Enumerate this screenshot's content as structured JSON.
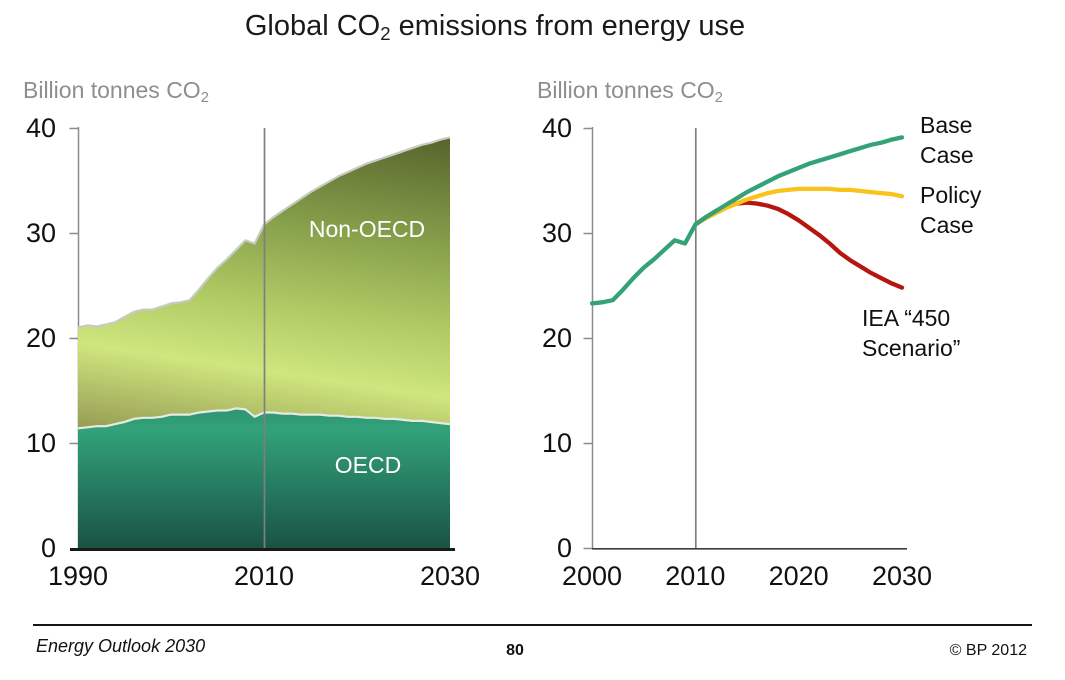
{
  "title": {
    "prefix": "Global CO",
    "sub": "2",
    "suffix": " emissions from energy use"
  },
  "left_chart_unit": {
    "prefix": "Billion tonnes CO",
    "sub": "2"
  },
  "right_chart_unit": {
    "prefix": "Billion tonnes CO",
    "sub": "2"
  },
  "chart_data": [
    {
      "type": "area",
      "stacked": true,
      "ylabel": "Billion tonnes CO2",
      "xlabel": "",
      "ylim": [
        0,
        40
      ],
      "grid": false,
      "x_start_year": 1990,
      "x_end_year": 2030,
      "x_step": 1,
      "y_ticks": [
        40,
        30,
        20,
        10,
        0
      ],
      "x_ticks": [
        1990,
        2010,
        2030
      ],
      "divider_year": 2010,
      "series": [
        {
          "name": "OECD",
          "values": [
            11.4,
            11.5,
            11.6,
            11.6,
            11.8,
            12.0,
            12.3,
            12.4,
            12.4,
            12.5,
            12.7,
            12.7,
            12.7,
            12.9,
            13.0,
            13.1,
            13.1,
            13.3,
            13.2,
            12.5,
            12.9,
            12.9,
            12.8,
            12.8,
            12.7,
            12.7,
            12.7,
            12.6,
            12.6,
            12.5,
            12.5,
            12.4,
            12.4,
            12.3,
            12.3,
            12.2,
            12.1,
            12.1,
            12.0,
            11.9,
            11.8
          ]
        },
        {
          "name": "Non-OECD",
          "values": [
            9.6,
            9.7,
            9.5,
            9.7,
            9.7,
            10.0,
            10.2,
            10.3,
            10.3,
            10.5,
            10.6,
            10.7,
            10.9,
            11.7,
            12.7,
            13.6,
            14.4,
            15.1,
            16.1,
            16.5,
            17.9,
            18.6,
            19.3,
            19.9,
            20.6,
            21.2,
            21.7,
            22.3,
            22.8,
            23.3,
            23.7,
            24.2,
            24.5,
            24.9,
            25.2,
            25.6,
            26.0,
            26.3,
            26.6,
            27.0,
            27.3
          ]
        }
      ]
    },
    {
      "type": "line",
      "ylabel": "Billion tonnes CO2",
      "xlabel": "",
      "ylim": [
        0,
        40
      ],
      "grid": false,
      "x_start_year": 2000,
      "x_end_year": 2030,
      "x_step": 1,
      "y_ticks": [
        40,
        30,
        20,
        10,
        0
      ],
      "x_ticks": [
        2000,
        2010,
        2020,
        2030
      ],
      "divider_year": 2010,
      "series": [
        {
          "name": "Base Case",
          "start_year": 2000,
          "color_key": "base_case_green",
          "values": [
            23.3,
            23.4,
            23.6,
            24.6,
            25.7,
            26.7,
            27.5,
            28.4,
            29.3,
            29.0,
            30.8,
            31.5,
            32.1,
            32.7,
            33.3,
            33.9,
            34.4,
            34.9,
            35.4,
            35.8,
            36.2,
            36.6,
            36.9,
            37.2,
            37.5,
            37.8,
            38.1,
            38.4,
            38.6,
            38.9,
            39.1
          ]
        },
        {
          "name": "Policy Case",
          "start_year": 2010,
          "color_key": "policy_case_yellow",
          "values": [
            30.8,
            31.4,
            31.9,
            32.4,
            32.8,
            33.2,
            33.5,
            33.8,
            34.0,
            34.1,
            34.2,
            34.2,
            34.2,
            34.2,
            34.1,
            34.1,
            34.0,
            33.9,
            33.8,
            33.7,
            33.5
          ]
        },
        {
          "name": "IEA “450 Scenario”",
          "start_year": 2010,
          "color_key": "iea_450_red",
          "values": [
            30.8,
            31.5,
            32.1,
            32.5,
            32.8,
            32.9,
            32.8,
            32.6,
            32.3,
            31.8,
            31.2,
            30.5,
            29.8,
            29.0,
            28.1,
            27.4,
            26.8,
            26.2,
            25.7,
            25.2,
            24.8
          ]
        }
      ]
    }
  ],
  "colors": {
    "base_case_green": "#31a376",
    "policy_case_yellow": "#fcc21c",
    "iea_450_red": "#b5160f",
    "non_oecd_gradient": [
      "#969c54",
      "#cfe67e",
      "#aec863",
      "#87a04b",
      "#57652c"
    ],
    "oecd_gradient": [
      "#2e8e6d",
      "#32a27a",
      "#1a5244"
    ],
    "total_outline": "#c6cbc2",
    "oecd_boundary": "#e6eae2",
    "axis_gray": "#8c8c8c",
    "axis_dark": "#1a1a1a",
    "divider_gray": "#7f7f7f",
    "muted_text": "#8e8e8e"
  },
  "footer": {
    "left": "Energy Outlook 2030",
    "page": "80",
    "right": "© BP 2012"
  }
}
